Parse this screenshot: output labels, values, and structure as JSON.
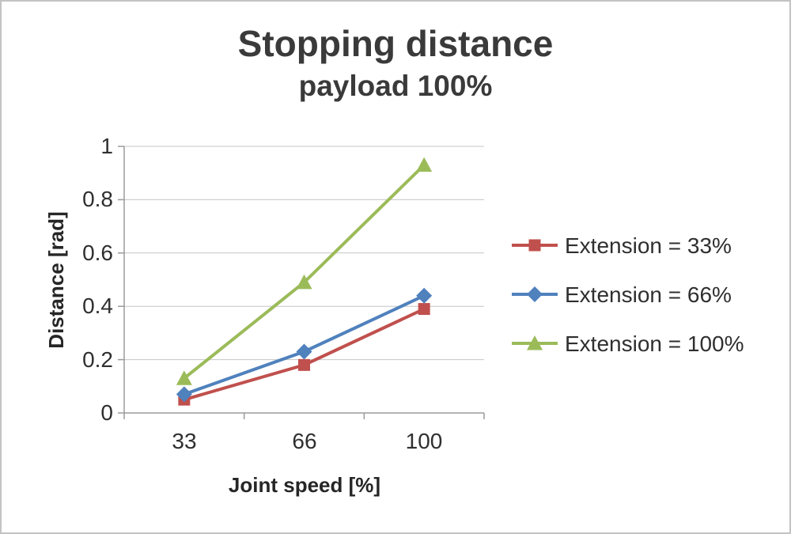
{
  "chart_data": {
    "type": "line",
    "title": "Stopping distance",
    "subtitle": "payload 100%",
    "xlabel": "Joint speed [%]",
    "ylabel": "Distance [rad]",
    "categories": [
      "33",
      "66",
      "100"
    ],
    "yticks": [
      "0",
      "0.2",
      "0.4",
      "0.6",
      "0.8",
      "1"
    ],
    "ylim": [
      0,
      1
    ],
    "grid": true,
    "legend_position": "right",
    "series": [
      {
        "name": "Extension = 33%",
        "color": "#C0504D",
        "marker": "square",
        "values": [
          0.05,
          0.18,
          0.39
        ]
      },
      {
        "name": "Extension = 66%",
        "color": "#4F81BD",
        "marker": "diamond",
        "values": [
          0.07,
          0.23,
          0.44
        ]
      },
      {
        "name": "Extension = 100%",
        "color": "#9BBB59",
        "marker": "triangle",
        "values": [
          0.13,
          0.49,
          0.93
        ]
      }
    ]
  }
}
